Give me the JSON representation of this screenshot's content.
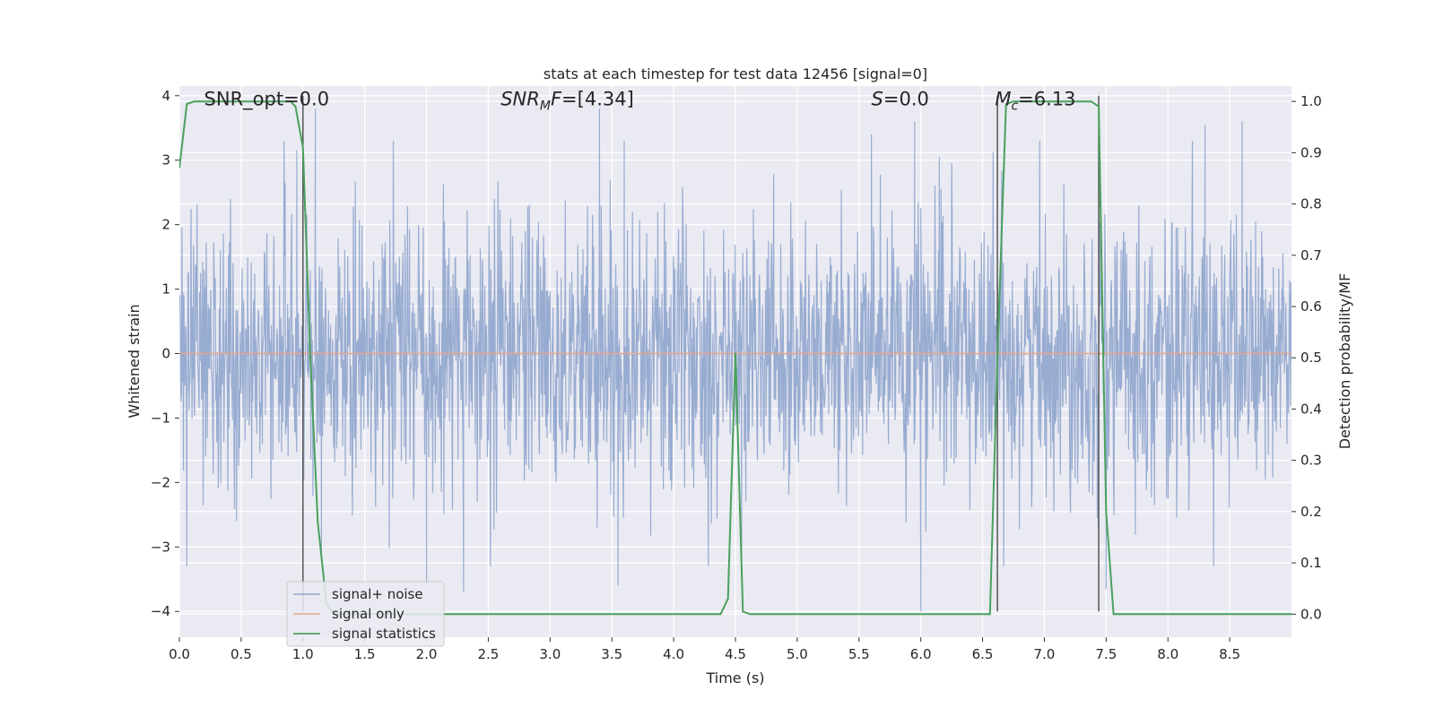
{
  "chart_data": {
    "type": "line",
    "title": "stats at each timestep for test data 12456 [signal=0]",
    "xlabel": "Time (s)",
    "ylabel_left": "Whitened strain",
    "ylabel_right": "Detection probability/MF",
    "xlim": [
      0.0,
      9.0
    ],
    "ylim_left": [
      -4.4,
      4.15
    ],
    "ylim_right": [
      -0.045,
      1.03
    ],
    "xticks": [
      "0.0",
      "0.5",
      "1.0",
      "1.5",
      "2.0",
      "2.5",
      "3.0",
      "3.5",
      "4.0",
      "4.5",
      "5.0",
      "5.5",
      "6.0",
      "6.5",
      "7.0",
      "7.5",
      "8.0",
      "8.5"
    ],
    "yticks_left": [
      "4",
      "3",
      "2",
      "1",
      "0",
      "−1",
      "−2",
      "−3",
      "−4"
    ],
    "yticks_left_values": [
      4,
      3,
      2,
      1,
      0,
      -1,
      -2,
      -3,
      -4
    ],
    "yticks_right": [
      "1.0",
      "0.9",
      "0.8",
      "0.7",
      "0.6",
      "0.5",
      "0.4",
      "0.3",
      "0.2",
      "0.1",
      "0.0"
    ],
    "yticks_right_values": [
      1.0,
      0.9,
      0.8,
      0.7,
      0.6,
      0.5,
      0.4,
      0.3,
      0.2,
      0.1,
      0.0
    ],
    "grid": true,
    "legend_position": "lower-left",
    "series": [
      {
        "name": "signal+ noise",
        "axis": "left",
        "color": "#8fa5cd",
        "description_noise": "dense whitened strain noise, 0.0–9.0 s, amplitude roughly ±1.5 typical with spikes up to ~3.8 and down to ~-4.0",
        "peaks": [
          {
            "x": 0.06,
            "y": -3.3
          },
          {
            "x": 0.95,
            "y": 3.15
          },
          {
            "x": 1.1,
            "y": 3.8
          },
          {
            "x": 1.15,
            "y": -3.1
          },
          {
            "x": 2.0,
            "y": -3.6
          },
          {
            "x": 2.3,
            "y": -3.7
          },
          {
            "x": 3.4,
            "y": 3.8
          },
          {
            "x": 3.55,
            "y": -3.6
          },
          {
            "x": 3.6,
            "y": 3.3
          },
          {
            "x": 4.55,
            "y": -3.45
          },
          {
            "x": 5.6,
            "y": 3.4
          },
          {
            "x": 5.95,
            "y": 3.6
          },
          {
            "x": 6.0,
            "y": -4.0
          },
          {
            "x": 6.15,
            "y": 3.05
          },
          {
            "x": 7.5,
            "y": -3.65
          },
          {
            "x": 8.3,
            "y": 3.55
          },
          {
            "x": 8.6,
            "y": 3.6
          }
        ]
      },
      {
        "name": "signal only",
        "axis": "left",
        "color": "#e8a58a",
        "x": [
          0.0,
          9.0
        ],
        "y": [
          0.0,
          0.0
        ]
      },
      {
        "name": "signal statistics",
        "axis": "right",
        "color": "#4aa05d",
        "x": [
          0.0,
          0.06,
          0.12,
          0.5,
          0.9,
          0.94,
          1.0,
          1.06,
          1.12,
          1.19,
          1.25,
          4.38,
          4.44,
          4.5,
          4.56,
          4.62,
          6.56,
          6.62,
          6.69,
          6.75,
          7.3,
          7.38,
          7.44,
          7.5,
          7.56,
          9.0
        ],
        "y": [
          0.87,
          0.995,
          1.0,
          1.0,
          1.0,
          0.99,
          0.91,
          0.5,
          0.18,
          0.02,
          0.0,
          0.0,
          0.03,
          0.51,
          0.005,
          0.0,
          0.0,
          0.5,
          0.995,
          1.0,
          1.0,
          1.0,
          0.99,
          0.2,
          0.0,
          0.0
        ]
      }
    ],
    "vlines": [
      {
        "x": 1.0,
        "ymin": -4.0,
        "ymax": 4.0,
        "color": "#555555"
      },
      {
        "x": 6.62,
        "ymin": -4.0,
        "ymax": 4.0,
        "color": "#555555"
      },
      {
        "x": 7.44,
        "ymin": -4.0,
        "ymax": 4.0,
        "color": "#555555"
      }
    ],
    "annotations": [
      {
        "text": "SNR_opt=0.0",
        "x": 0.2,
        "y": 3.95
      },
      {
        "text": "SNR_MF=[4.34]",
        "base": "SNR",
        "sub": "M",
        "rest": "F=[4.34]",
        "x": 2.6,
        "y": 3.95
      },
      {
        "text": "S=0.0",
        "base": "S",
        "rest": "=0.0",
        "x": 5.6,
        "y": 3.95
      },
      {
        "text": "M_c=6.13",
        "base": "M",
        "sub": "c",
        "rest": "=6.13",
        "x": 6.6,
        "y": 3.95
      }
    ]
  }
}
